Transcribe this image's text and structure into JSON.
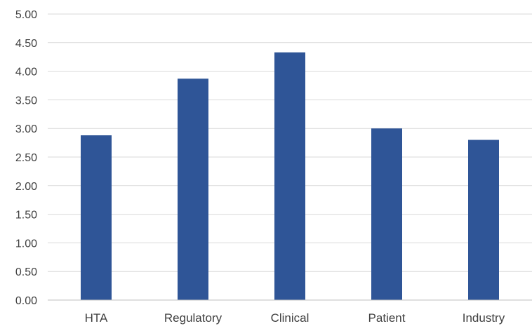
{
  "chart_data": {
    "type": "bar",
    "title": "",
    "xlabel": "",
    "ylabel": "",
    "categories": [
      "HTA",
      "Regulatory",
      "Clinical",
      "Patient",
      "Industry"
    ],
    "values": [
      2.88,
      3.87,
      4.33,
      3.0,
      2.8
    ],
    "ylim": [
      0,
      5
    ],
    "yticks": [
      "0.00",
      "0.50",
      "1.00",
      "1.50",
      "2.00",
      "2.50",
      "3.00",
      "3.50",
      "4.00",
      "4.50",
      "5.00"
    ],
    "grid": true,
    "legend": "none",
    "bar_color": "#2f5597"
  }
}
